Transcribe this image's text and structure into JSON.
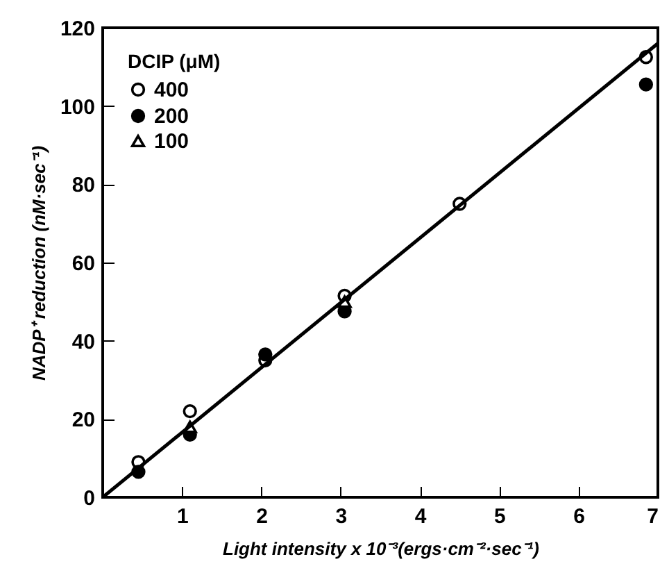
{
  "chart_data": {
    "type": "scatter",
    "xlabel": "Light intensity x 10⁻³(ergs·cm⁻²·sec⁻¹)",
    "ylabel": "NADP⁺ reduction (nM·sec⁻¹)",
    "legend_title": "DCIP (μM)",
    "legend": "top left",
    "grid": false,
    "xlim": [
      0,
      7
    ],
    "xticks": [
      1,
      2,
      3,
      4,
      5,
      6,
      7
    ],
    "ylim": [
      0,
      120
    ],
    "yticks": [
      0,
      20,
      40,
      60,
      80,
      100,
      120
    ],
    "series": [
      {
        "name": "400",
        "color": "#000000",
        "marker": "circle",
        "x": [
          0.45,
          1.1,
          2.05,
          3.05,
          4.5,
          6.85
        ],
        "values": [
          9,
          22,
          35,
          51.5,
          75,
          112.5
        ]
      },
      {
        "name": "200",
        "color": "#000000",
        "marker": "circle",
        "x": [
          0.45,
          1.1,
          2.05,
          3.05,
          6.85
        ],
        "values": [
          6.5,
          16,
          36.5,
          47.5,
          105.5
        ]
      },
      {
        "name": "100",
        "color": "#000000",
        "marker": "triangle",
        "x": [
          1.1,
          3.05
        ],
        "values": [
          18,
          50
        ]
      },
      {
        "type": "line",
        "color": "#000000",
        "line_style": "solid",
        "x": [
          0,
          7
        ],
        "values": [
          0,
          116
        ]
      }
    ]
  }
}
